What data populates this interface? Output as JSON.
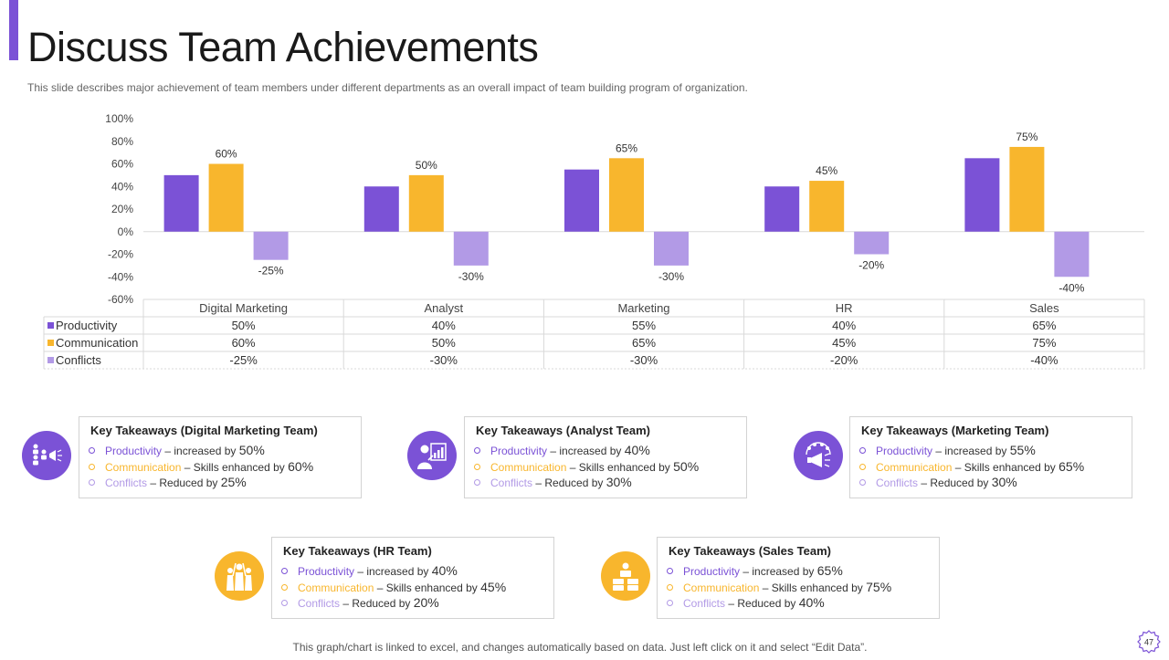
{
  "slide": {
    "title": "Discuss Team Achievements",
    "subtitle": "This slide describes major achievement of team members under different departments as an overall impact of team building program of organization.",
    "footer": "This graph/chart is linked to excel, and changes automatically based on data. Just left click on it and select “Edit Data”.",
    "page_number": "47"
  },
  "colors": {
    "accent": "#7b52d6",
    "productivity": "#7b52d6",
    "communication": "#f8b62d",
    "conflicts": "#b29ae6",
    "icon_yellow": "#f8b62d"
  },
  "chart_data": {
    "type": "bar",
    "categories": [
      "Digital Marketing",
      "Analyst",
      "Marketing",
      "HR",
      "Sales"
    ],
    "series": [
      {
        "name": "Productivity",
        "values": [
          50,
          40,
          55,
          40,
          65
        ],
        "cells": [
          "50%",
          "40%",
          "55%",
          "40%",
          "65%"
        ],
        "color": "#7b52d6"
      },
      {
        "name": "Communication",
        "values": [
          60,
          50,
          65,
          45,
          75
        ],
        "cells": [
          "60%",
          "50%",
          "65%",
          "45%",
          "75%"
        ],
        "color": "#f8b62d",
        "labels": [
          "60%",
          "50%",
          "65%",
          "45%",
          "75%"
        ]
      },
      {
        "name": "Conflicts",
        "values": [
          -25,
          -30,
          -30,
          -20,
          -40
        ],
        "cells": [
          "-25%",
          "-30%",
          "-30%",
          "-20%",
          "-40%"
        ],
        "color": "#b29ae6",
        "labels": [
          "-25%",
          "-30%",
          "-30%",
          "-20%",
          "-40%"
        ]
      }
    ],
    "ylim": [
      -60,
      100
    ],
    "yticks": [
      100,
      80,
      60,
      40,
      20,
      0,
      -20,
      -40,
      -60
    ],
    "ytick_labels": [
      "100%",
      "80%",
      "60%",
      "40%",
      "20%",
      "0%",
      "-20%",
      "-40%",
      "-60%"
    ],
    "data_table": true
  },
  "takeaways": [
    {
      "title": "Key Takeaways (Digital Marketing Team)",
      "icon": "team-megaphone-icon",
      "icon_color": "#7b52d6",
      "lines": [
        {
          "label": "Productivity",
          "text": " – increased by ",
          "value": "50%"
        },
        {
          "label": "Communication",
          "text": " – Skills enhanced by ",
          "value": "60%"
        },
        {
          "label": "Conflicts",
          "text": " – Reduced by ",
          "value": "25%"
        }
      ]
    },
    {
      "title": "Key Takeaways (Analyst  Team)",
      "icon": "analyst-presenter-icon",
      "icon_color": "#7b52d6",
      "lines": [
        {
          "label": "Productivity",
          "text": " – increased by ",
          "value": "40%"
        },
        {
          "label": "Communication",
          "text": " – Skills enhanced by ",
          "value": "50%"
        },
        {
          "label": "Conflicts",
          "text": " – Reduced by ",
          "value": "30%"
        }
      ]
    },
    {
      "title": "Key Takeaways (Marketing Team)",
      "icon": "marketing-megaphone-icon",
      "icon_color": "#7b52d6",
      "lines": [
        {
          "label": "Productivity",
          "text": " – increased by ",
          "value": "55%"
        },
        {
          "label": "Communication",
          "text": " – Skills enhanced by ",
          "value": "65%"
        },
        {
          "label": "Conflicts",
          "text": " – Reduced by ",
          "value": "30%"
        }
      ]
    },
    {
      "title": "Key Takeaways (HR Team)",
      "icon": "people-group-icon",
      "icon_color": "#f8b62d",
      "lines": [
        {
          "label": "Productivity",
          "text": " – increased by ",
          "value": "40%"
        },
        {
          "label": "Communication",
          "text": " – Skills enhanced by ",
          "value": "45%"
        },
        {
          "label": "Conflicts",
          "text": " – Reduced by ",
          "value": "20%"
        }
      ]
    },
    {
      "title": "Key Takeaways (Sales Team)",
      "icon": "money-stack-icon",
      "icon_color": "#f8b62d",
      "lines": [
        {
          "label": "Productivity",
          "text": " – increased by ",
          "value": "65%"
        },
        {
          "label": "Communication",
          "text": " – Skills enhanced by ",
          "value": "75%"
        },
        {
          "label": "Conflicts",
          "text": " – Reduced by ",
          "value": "40%"
        }
      ]
    }
  ]
}
